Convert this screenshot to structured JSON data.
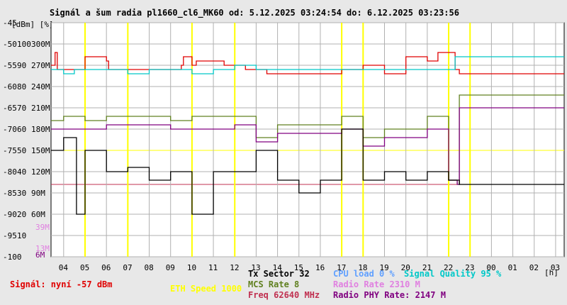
{
  "chart_data": {
    "type": "line",
    "title": "Signál a šum radia pl1660_cl6_MK60 od: 5.12.2025 03:24:54 do: 6.12.2025 03:23:56",
    "y_axis_units": "[dBm] [%]",
    "x_unit": "[h]",
    "ylim": [
      -100,
      -45
    ],
    "y_ticks_dbm": [
      -45,
      -50,
      -55,
      -60,
      -65,
      -70,
      -75,
      -80,
      -85,
      -90,
      -95,
      -100
    ],
    "y_ticks_percent": [
      100,
      90,
      80,
      70,
      60,
      50,
      40,
      30,
      20,
      10
    ],
    "y_ticks_rate": [
      "300M",
      "270M",
      "240M",
      "210M",
      "180M",
      "150M",
      "120M",
      "90M",
      "60M"
    ],
    "rate_markers": [
      "39M",
      "13M",
      "6M"
    ],
    "x_ticks": [
      "04",
      "05",
      "06",
      "07",
      "08",
      "09",
      "10",
      "11",
      "12",
      "13",
      "14",
      "15",
      "16",
      "17",
      "18",
      "19",
      "20",
      "21",
      "22",
      "23",
      "00",
      "01",
      "02",
      "03"
    ],
    "x_range_hours": [
      3.41,
      27.4
    ],
    "grid": true,
    "series": [
      {
        "name": "Signal",
        "color": "#e00000",
        "x": [
          3.41,
          3.6,
          3.7,
          4.8,
          5.0,
          6.0,
          6.1,
          9.5,
          9.6,
          10.0,
          10.2,
          11.5,
          12.5,
          13.5,
          15.0,
          17.0,
          18.0,
          19.0,
          20.0,
          21.0,
          21.5,
          22.0,
          22.3,
          22.5,
          27.4
        ],
        "y": [
          -55,
          -52,
          -56,
          -56,
          -53,
          -54,
          -56,
          -55,
          -53,
          -55,
          -54,
          -55,
          -56,
          -57,
          -57,
          -56,
          -55,
          -57,
          -53,
          -54,
          -52,
          -52,
          -56,
          -57,
          -57
        ]
      },
      {
        "name": "Signal Quality",
        "color": "#00c8c8",
        "x": [
          3.41,
          4.0,
          4.5,
          5.0,
          6.0,
          7.0,
          8.0,
          9.0,
          10.0,
          11.0,
          12.0,
          13.0,
          14.0,
          15.0,
          16.0,
          17.0,
          18.0,
          19.0,
          20.0,
          21.0,
          22.0,
          22.3,
          22.5,
          27.4
        ],
        "y": [
          -56,
          -57,
          -56,
          -56,
          -56,
          -57,
          -56,
          -56,
          -57,
          -56,
          -55,
          -56,
          -56,
          -56,
          -56,
          -56,
          -56,
          -56,
          -56,
          -56,
          -56,
          -53,
          -53,
          -53
        ]
      },
      {
        "name": "MCS Rate 8",
        "color": "#608020",
        "x": [
          3.41,
          4.0,
          5.0,
          6.0,
          8.0,
          9.0,
          10.0,
          12.0,
          13.0,
          14.0,
          16.0,
          17.0,
          18.0,
          19.0,
          20.0,
          21.0,
          22.0,
          22.4,
          22.5,
          27.4
        ],
        "y": [
          -68,
          -67,
          -68,
          -67,
          -67,
          -68,
          -67,
          -67,
          -72,
          -69,
          -69,
          -67,
          -72,
          -70,
          -70,
          -67,
          -82,
          -83,
          -62,
          -62
        ]
      },
      {
        "name": "Radio PHY Rate: 2147 M",
        "color": "#800080",
        "x": [
          3.41,
          4.0,
          5.0,
          6.0,
          8.0,
          9.0,
          10.0,
          12.0,
          13.0,
          14.0,
          16.0,
          17.0,
          18.0,
          19.0,
          20.0,
          21.0,
          22.0,
          22.4,
          22.5,
          27.4
        ],
        "y": [
          -70,
          -70,
          -70,
          -69,
          -69,
          -70,
          -70,
          -69,
          -73,
          -71,
          -71,
          -70,
          -74,
          -72,
          -72,
          -70,
          -82,
          -83,
          -65,
          -65
        ]
      },
      {
        "name": "Tx Sector 32",
        "color": "#000000",
        "x": [
          3.41,
          4.0,
          4.6,
          5.0,
          6.0,
          7.0,
          8.0,
          9.0,
          10.0,
          11.0,
          12.0,
          13.0,
          14.0,
          15.0,
          16.0,
          17.0,
          18.0,
          19.0,
          20.0,
          21.0,
          22.0,
          22.5,
          27.4
        ],
        "y": [
          -75,
          -72,
          -90,
          -75,
          -80,
          -79,
          -82,
          -80,
          -90,
          -80,
          -80,
          -75,
          -82,
          -85,
          -82,
          -70,
          -82,
          -80,
          -82,
          -80,
          -82,
          -83,
          -83
        ]
      }
    ]
  },
  "legend": {
    "signal_now": "Signál: nyní -57 dBm",
    "eth_speed": "ETH Speed 1000",
    "tx_sector": "Tx Sector 32",
    "mcs_rate": "MCS Rate 8",
    "freq": "Freq 62640 MHz",
    "cpu_load": "CPU load 0 %",
    "signal_quality": "Signal Quality 95 %",
    "radio_rate": "Radio Rate 2310 M",
    "radio_phy_rate": "Radio PHY Rate: 2147 M"
  },
  "colors": {
    "signal": "#e00000",
    "quality": "#00c8c8",
    "mcs": "#608020",
    "phy": "#800080",
    "tx": "#000000",
    "eth": "#ffff00",
    "cpu": "#60a0ff",
    "radio_rate": "#e080e0",
    "freq": "#c03050",
    "grid": "#b0b0b0",
    "plot_bg": "#ffffff"
  }
}
